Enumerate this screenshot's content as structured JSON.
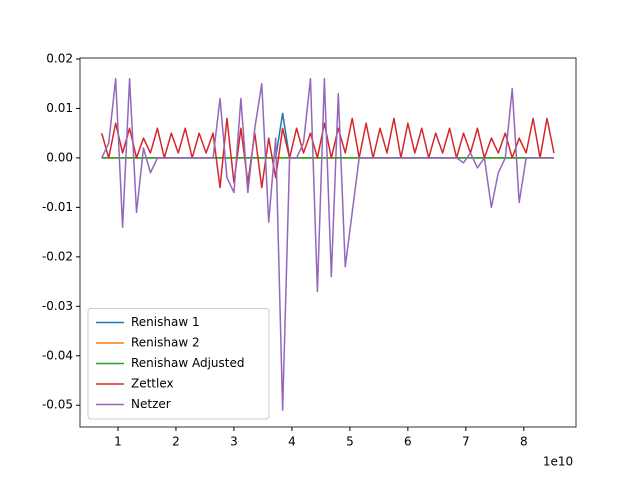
{
  "chart_data": {
    "type": "line",
    "x": [
      7200000000.0,
      8400000000.0,
      9600000000.0,
      10800000000.0,
      12000000000.0,
      13200000000.0,
      14400000000.0,
      15600000000.0,
      16800000000.0,
      18000000000.0,
      19200000000.0,
      20400000000.0,
      21600000000.0,
      22800000000.0,
      24000000000.0,
      25200000000.0,
      26400000000.0,
      27600000000.0,
      28800000000.0,
      30000000000.0,
      31200000000.0,
      32400000000.0,
      33600000000.0,
      34800000000.0,
      36000000000.0,
      37200000000.0,
      38400000000.0,
      39600000000.0,
      40800000000.0,
      42000000000.0,
      43200000000.0,
      44400000000.0,
      45600000000.0,
      46800000000.0,
      48000000000.0,
      49200000000.0,
      50400000000.0,
      51600000000.0,
      52800000000.0,
      54000000000.0,
      55200000000.0,
      56400000000.0,
      57600000000.0,
      58800000000.0,
      60000000000.0,
      61200000000.0,
      62400000000.0,
      63600000000.0,
      64800000000.0,
      66000000000.0,
      67200000000.0,
      68400000000.0,
      69600000000.0,
      70800000000.0,
      72000000000.0,
      73200000000.0,
      74400000000.0,
      75600000000.0,
      76800000000.0,
      78000000000.0,
      79200000000.0,
      80400000000.0,
      81600000000.0,
      82800000000.0,
      84000000000.0,
      85200000000.0
    ],
    "x_offset_label": "1e10",
    "series": [
      {
        "name": "Renishaw 1",
        "color": "#1f77b4",
        "values": [
          0,
          0,
          0,
          0,
          0,
          0,
          0,
          0,
          0,
          0,
          0,
          0,
          0,
          0,
          0,
          0,
          0,
          0,
          0,
          0,
          0,
          0,
          0,
          0,
          0,
          0,
          0.009,
          0,
          0,
          0,
          0,
          0,
          0,
          0,
          0,
          0,
          0,
          0,
          0,
          0,
          0,
          0,
          0,
          0,
          0,
          0,
          0,
          0,
          0,
          0,
          0,
          0,
          0,
          0,
          0,
          0,
          0,
          0,
          0,
          0,
          0,
          0,
          0,
          0,
          0,
          0
        ]
      },
      {
        "name": "Renishaw 2",
        "color": "#ff7f0e",
        "values": [
          0,
          0,
          0,
          0,
          0,
          0,
          0,
          0,
          0,
          0,
          0,
          0,
          0,
          0,
          0,
          0,
          0,
          0,
          0,
          0,
          0,
          0,
          0,
          0,
          0,
          0,
          0,
          0,
          0,
          0,
          0,
          0,
          0,
          0,
          0,
          0,
          0,
          0,
          0,
          0,
          0,
          0,
          0,
          0,
          0,
          0,
          0,
          0,
          0,
          0,
          0,
          0,
          0,
          0,
          0,
          0,
          0,
          0,
          0,
          0,
          0,
          0,
          0,
          0,
          0,
          0
        ]
      },
      {
        "name": "Renishaw Adjusted",
        "color": "#2ca02c",
        "values": [
          0,
          0,
          0,
          0,
          0,
          0,
          0,
          0,
          0,
          0,
          0,
          0,
          0,
          0,
          0,
          0,
          0,
          0,
          0,
          0,
          0,
          0,
          0,
          0,
          0,
          0,
          0,
          0,
          0,
          0,
          0,
          0,
          0,
          0,
          0,
          0,
          0,
          0,
          0,
          0,
          0,
          0,
          0,
          0,
          0,
          0,
          0,
          0,
          0,
          0,
          0,
          0,
          0,
          0,
          0,
          0,
          0,
          0,
          0,
          0,
          0,
          0,
          0,
          0,
          0,
          0
        ]
      },
      {
        "name": "Zettlex",
        "color": "#d62728",
        "values": [
          0.005,
          0,
          0.007,
          0.001,
          0.006,
          0,
          0.004,
          0.001,
          0.006,
          0,
          0.005,
          0.001,
          0.006,
          0,
          0.005,
          0.001,
          0.005,
          -0.006,
          0.008,
          -0.005,
          0.006,
          -0.005,
          0.005,
          -0.006,
          0.004,
          -0.004,
          0.006,
          0,
          0.006,
          0.001,
          0.005,
          0,
          0.007,
          0,
          0.006,
          0.001,
          0.008,
          0,
          0.007,
          0,
          0.006,
          0.001,
          0.008,
          0,
          0.007,
          0.001,
          0.006,
          0,
          0.005,
          0.001,
          0.006,
          0,
          0.005,
          0.001,
          0.006,
          0,
          0.004,
          0.001,
          0.005,
          0,
          0.004,
          0.001,
          0.008,
          0,
          0.008,
          0.001
        ]
      },
      {
        "name": "Netzer",
        "color": "#9467bd",
        "values": [
          0,
          0.003,
          0.016,
          -0.014,
          0.016,
          -0.011,
          0.002,
          -0.003,
          0,
          0,
          0,
          0,
          0,
          0,
          0,
          0,
          0,
          0.012,
          -0.004,
          -0.007,
          0.012,
          -0.007,
          0.006,
          0.015,
          -0.013,
          0.004,
          -0.051,
          0,
          0,
          0.003,
          0.016,
          -0.027,
          0.016,
          -0.024,
          0.013,
          -0.022,
          -0.011,
          0,
          0,
          0,
          0,
          0,
          0,
          0,
          0,
          0,
          0,
          0,
          0,
          0,
          0,
          0,
          -0.001,
          0.001,
          -0.002,
          0,
          -0.01,
          -0.003,
          0,
          0.014,
          -0.009,
          0,
          0,
          0,
          0,
          0
        ]
      }
    ],
    "xlim": [
      3450000000.0,
      89000000000.0
    ],
    "xticks": [
      {
        "value": 10000000000.0,
        "label": "1"
      },
      {
        "value": 20000000000.0,
        "label": "2"
      },
      {
        "value": 30000000000.0,
        "label": "3"
      },
      {
        "value": 40000000000.0,
        "label": "4"
      },
      {
        "value": 50000000000.0,
        "label": "5"
      },
      {
        "value": 60000000000.0,
        "label": "6"
      },
      {
        "value": 70000000000.0,
        "label": "7"
      },
      {
        "value": 80000000000.0,
        "label": "8"
      }
    ],
    "ylim": [
      -0.0544,
      0.0202
    ],
    "yticks": [
      -0.05,
      -0.04,
      -0.03,
      -0.02,
      -0.01,
      {
        "value": 0,
        "label": "0.00"
      },
      0.01,
      0.02
    ],
    "legend": "lower left"
  }
}
